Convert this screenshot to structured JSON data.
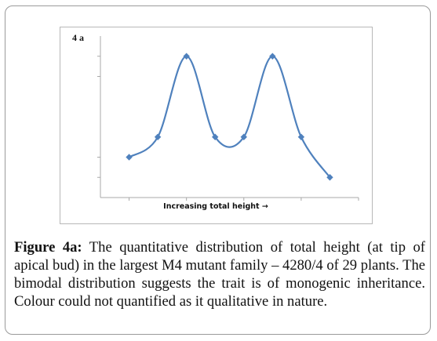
{
  "chart_data": {
    "type": "line",
    "panel_label": "4 a",
    "xlabel": "Increasing total height →",
    "ylabel": "",
    "x": [
      1,
      2,
      3,
      4,
      5,
      6,
      7,
      8
    ],
    "series": [
      {
        "values": [
          2,
          3,
          7,
          3,
          3,
          7,
          3,
          1
        ]
      }
    ],
    "y_ticks": [
      1,
      2,
      6,
      7
    ],
    "ylim": [
      0,
      8
    ],
    "xlim": [
      0,
      9
    ],
    "x_tick_positions": [
      1,
      3,
      5,
      7,
      9
    ],
    "smooth": true,
    "line_color": "#4f81bd",
    "marker": "diamond",
    "grid": false,
    "legend": "none"
  },
  "caption": {
    "label": "Figure 4a:",
    "text": " The quantitative distribution of total height (at tip of apical bud) in the largest M4 mutant family – 4280/4 of 29 plants. The bimodal distribution suggests the trait is of monogenic inheritance. Colour could not quantified as it qualitative in nature."
  }
}
